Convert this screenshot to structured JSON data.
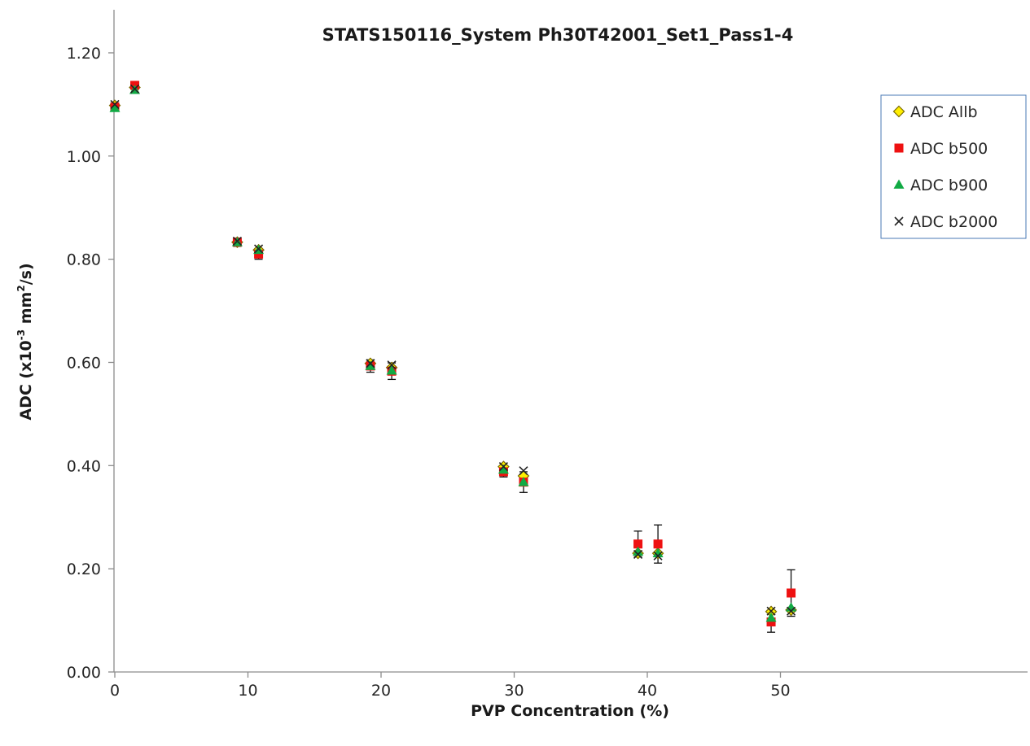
{
  "chart_data": {
    "type": "scatter",
    "title": "STATS150116_System Ph30T42001_Set1_Pass1-4",
    "xlabel": "PVP Concentration (%)",
    "ylabel": {
      "prefix": "ADC (x10",
      "sup1": "-3",
      "mid": " mm",
      "sup2": "2",
      "suffix": "/s)"
    },
    "xlim": [
      0,
      55
    ],
    "ylim": [
      0,
      1.2
    ],
    "x_ticks": [
      0,
      10,
      20,
      30,
      40,
      50
    ],
    "x_tick_labels": [
      "0",
      "10",
      "20",
      "30",
      "40",
      "50"
    ],
    "y_ticks": [
      0,
      0.2,
      0.4,
      0.6,
      0.8,
      1.0,
      1.2
    ],
    "y_tick_labels": [
      "0.00",
      "0.20",
      "0.40",
      "0.60",
      "0.80",
      "1.00",
      "1.20"
    ],
    "grid": false,
    "legend_position": "top-right",
    "series": [
      {
        "name": "ADC Allb",
        "marker": "diamond",
        "color": "#ffee00",
        "stroke": "#7a6a00",
        "x": [
          0,
          1.5,
          9.2,
          10.8,
          19.2,
          20.8,
          29.2,
          30.7,
          39.3,
          40.8,
          49.3,
          50.8
        ],
        "y": [
          1.098,
          1.133,
          0.833,
          0.818,
          0.598,
          0.59,
          0.398,
          0.38,
          0.23,
          0.23,
          0.117,
          0.12
        ]
      },
      {
        "name": "ADC b500",
        "marker": "square",
        "color": "#ee1111",
        "x": [
          0,
          1.5,
          9.2,
          10.8,
          19.2,
          20.8,
          29.2,
          30.7,
          39.3,
          40.8,
          49.3,
          50.8
        ],
        "y": [
          1.095,
          1.137,
          0.833,
          0.81,
          0.593,
          0.583,
          0.388,
          0.368,
          0.248,
          0.248,
          0.097,
          0.153
        ],
        "err": [
          0.008,
          0.005,
          0.008,
          0.01,
          0.012,
          0.016,
          0.01,
          0.02,
          0.025,
          0.037,
          0.02,
          0.045
        ]
      },
      {
        "name": "ADC b900",
        "marker": "triangle",
        "color": "#11aa44",
        "x": [
          0,
          1.5,
          9.2,
          10.8,
          19.2,
          20.8,
          29.2,
          30.7,
          39.3,
          40.8,
          49.3,
          50.8
        ],
        "y": [
          1.093,
          1.128,
          0.833,
          0.818,
          0.593,
          0.584,
          0.392,
          0.368,
          0.233,
          0.23,
          0.105,
          0.125
        ]
      },
      {
        "name": "ADC b2000",
        "marker": "x",
        "color": "#222222",
        "x": [
          0,
          1.5,
          9.2,
          10.8,
          19.2,
          20.8,
          29.2,
          30.7,
          39.3,
          40.8,
          49.3,
          50.8
        ],
        "y": [
          1.1,
          1.13,
          0.835,
          0.82,
          0.598,
          0.595,
          0.398,
          0.39,
          0.228,
          0.225,
          0.118,
          0.118
        ]
      }
    ]
  }
}
